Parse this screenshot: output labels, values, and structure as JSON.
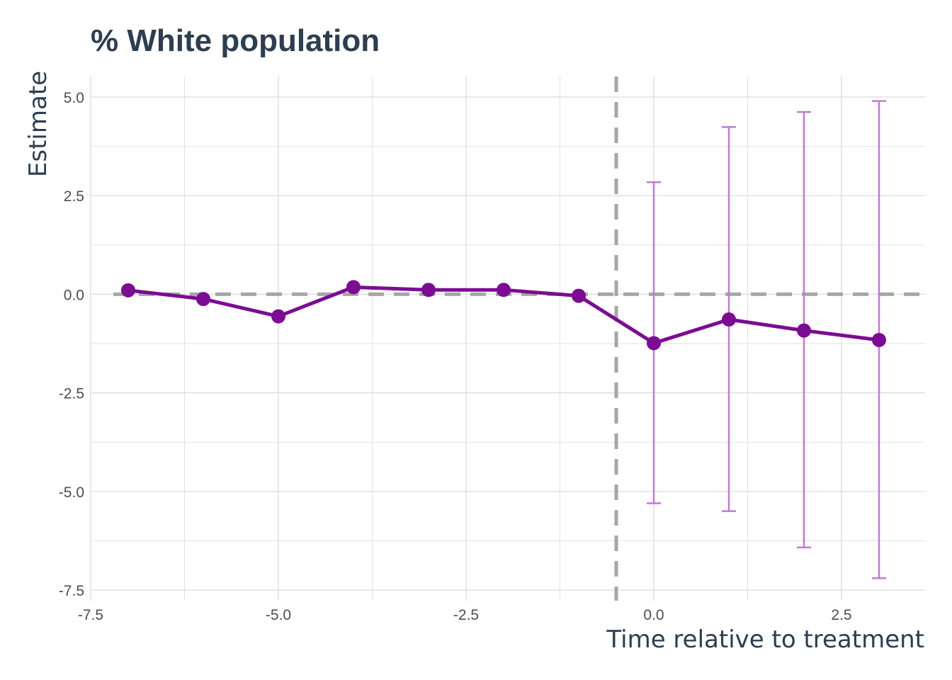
{
  "chart_data": {
    "type": "line",
    "title": "% White population",
    "xlabel": "Time relative to treatment",
    "ylabel": "Estimate",
    "xlim": [
      -7.5,
      3.6
    ],
    "ylim": [
      -7.6,
      5.5
    ],
    "x_ticks": [
      {
        "value": -7.5,
        "label": "-7.5"
      },
      {
        "value": -5.0,
        "label": "-5.0"
      },
      {
        "value": -2.5,
        "label": "-2.5"
      },
      {
        "value": 0.0,
        "label": "0.0"
      },
      {
        "value": 2.5,
        "label": "2.5"
      }
    ],
    "y_ticks": [
      {
        "value": 5.0,
        "label": "5.0"
      },
      {
        "value": 2.5,
        "label": "2.5"
      },
      {
        "value": 0.0,
        "label": "0.0"
      },
      {
        "value": -2.5,
        "label": "-2.5"
      },
      {
        "value": -5.0,
        "label": "-5.0"
      },
      {
        "value": -7.5,
        "label": "-7.5"
      }
    ],
    "grid": true,
    "legend": "none",
    "series": [
      {
        "x": [
          -7,
          -6,
          -5,
          -4,
          -3,
          -2,
          -1,
          0,
          1,
          2,
          3
        ],
        "y": [
          0.1,
          -0.12,
          -0.56,
          0.18,
          0.11,
          0.11,
          -0.04,
          -1.24,
          -0.64,
          -0.92,
          -1.16
        ],
        "ci_lower": [
          null,
          null,
          null,
          null,
          null,
          null,
          null,
          -5.3,
          -5.5,
          -6.42,
          -7.2
        ],
        "ci_upper": [
          null,
          null,
          null,
          null,
          null,
          null,
          null,
          2.84,
          4.24,
          4.62,
          4.9
        ]
      }
    ],
    "reference_lines": [
      {
        "axis": "y",
        "value": 0.0,
        "style": "dashed"
      },
      {
        "axis": "x",
        "value": -0.5,
        "style": "dashed"
      }
    ],
    "colors": {
      "series": "#7b0c93",
      "errorbar": "#c27ad4",
      "reference": "#a6a6a6"
    }
  }
}
